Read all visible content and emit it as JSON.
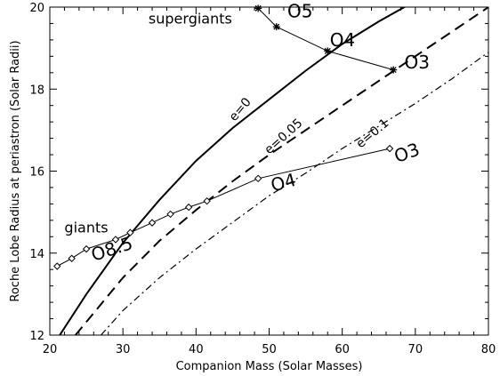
{
  "chart_data": {
    "type": "line",
    "xlabel": "Companion Mass (Solar Masses)",
    "ylabel": "Roche Lobe Radius at periastron (Solar Radii)",
    "xlim": [
      20,
      80
    ],
    "ylim": [
      12,
      20
    ],
    "xticks": [
      20,
      30,
      40,
      50,
      60,
      70,
      80
    ],
    "yticks": [
      12,
      14,
      16,
      18,
      20
    ],
    "grid": false,
    "series": [
      {
        "name": "e=0",
        "style": "solid",
        "x": [
          21,
          25,
          30,
          35,
          40,
          45,
          50,
          55,
          60,
          65,
          70
        ],
        "y": [
          11.9,
          13.0,
          14.25,
          15.3,
          16.25,
          17.05,
          17.75,
          18.45,
          19.1,
          19.65,
          20.15
        ]
      },
      {
        "name": "e=0.05",
        "style": "dashed",
        "x": [
          23.5,
          30,
          35,
          40,
          45,
          50,
          55,
          60,
          65,
          70,
          75,
          80
        ],
        "y": [
          12.0,
          13.4,
          14.3,
          15.05,
          15.75,
          16.4,
          17.0,
          17.6,
          18.2,
          18.8,
          19.4,
          20.0
        ]
      },
      {
        "name": "e=0.1",
        "style": "dashdot",
        "x": [
          27,
          30,
          35,
          40,
          45,
          50,
          55,
          60,
          65,
          70,
          75,
          80
        ],
        "y": [
          12.0,
          12.6,
          13.4,
          14.1,
          14.75,
          15.4,
          15.95,
          16.55,
          17.1,
          17.65,
          18.25,
          18.9
        ]
      },
      {
        "name": "supergiants",
        "style": "solid-thin-markers-star",
        "x": [
          48.5,
          51,
          58,
          67
        ],
        "y": [
          19.97,
          19.52,
          18.93,
          18.47
        ]
      },
      {
        "name": "giants",
        "style": "solid-thin-markers-diamond",
        "x": [
          21,
          23,
          25,
          29,
          31,
          34,
          36.5,
          39,
          41.5,
          48.5,
          66.5
        ],
        "y": [
          13.68,
          13.87,
          14.1,
          14.33,
          14.5,
          14.74,
          14.95,
          15.12,
          15.27,
          15.82,
          16.55
        ]
      }
    ],
    "annotations": [
      {
        "text": "supergiants",
        "x": 33.5,
        "y": 19.6,
        "size": 16,
        "rotate": 0
      },
      {
        "text": "O5",
        "x": 52.5,
        "y": 19.75,
        "size": 20,
        "rotate": 0
      },
      {
        "text": "O4",
        "x": 58.3,
        "y": 19.05,
        "size": 20,
        "rotate": 0
      },
      {
        "text": "O3",
        "x": 68.5,
        "y": 18.5,
        "size": 20,
        "rotate": 0
      },
      {
        "text": "e=0",
        "x": 45.3,
        "y": 17.2,
        "size": 14,
        "rotate": -50
      },
      {
        "text": "e=0.05",
        "x": 50.0,
        "y": 16.4,
        "size": 14,
        "rotate": -42
      },
      {
        "text": "e=0.1",
        "x": 62.5,
        "y": 16.55,
        "size": 14,
        "rotate": -40
      },
      {
        "text": "O3",
        "x": 67.5,
        "y": 16.2,
        "size": 20,
        "rotate": -20
      },
      {
        "text": "O4",
        "x": 50.5,
        "y": 15.5,
        "size": 20,
        "rotate": -15
      },
      {
        "text": "giants",
        "x": 22.0,
        "y": 14.5,
        "size": 16,
        "rotate": 0
      },
      {
        "text": "O8.5",
        "x": 26.0,
        "y": 13.8,
        "size": 20,
        "rotate": -18
      }
    ]
  }
}
